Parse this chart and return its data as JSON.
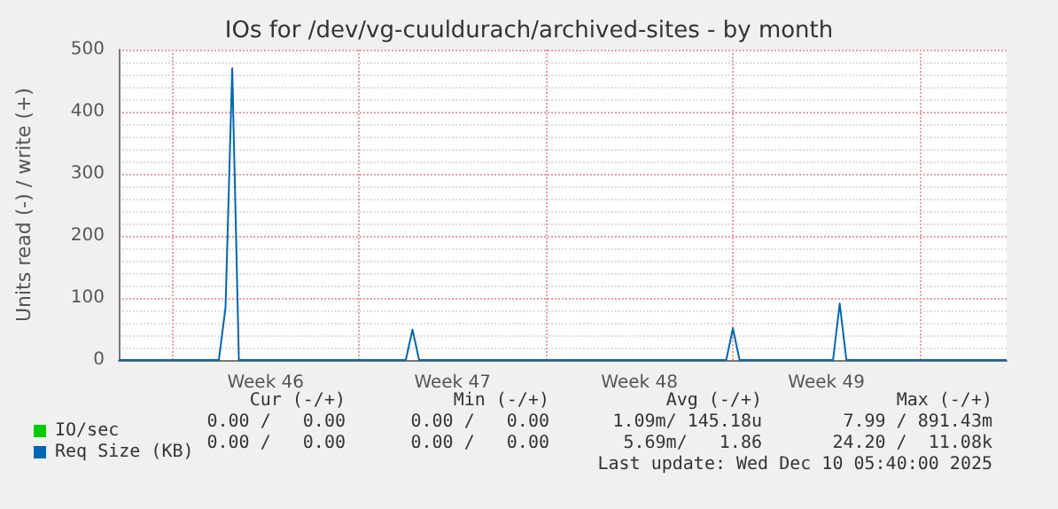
{
  "chart_data": {
    "type": "line",
    "title": "IOs for /dev/vg-cuuldurach/archived-sites - by month",
    "ylabel": "Units read (-) / write (+)",
    "categories": [
      null,
      null,
      null,
      null,
      null,
      null,
      null,
      null,
      null,
      null,
      null,
      null,
      null,
      null,
      null,
      null,
      null,
      null,
      null,
      null,
      null,
      null,
      "Week 46",
      null,
      null,
      null,
      null,
      null,
      null,
      null,
      null,
      null,
      null,
      null,
      null,
      null,
      null,
      null,
      null,
      null,
      null,
      null,
      null,
      null,
      null,
      null,
      null,
      null,
      null,
      null,
      "Week 47",
      null,
      null,
      null,
      null,
      null,
      null,
      null,
      null,
      null,
      null,
      null,
      null,
      null,
      null,
      null,
      null,
      null,
      null,
      null,
      null,
      null,
      null,
      null,
      null,
      null,
      null,
      null,
      "Week 48",
      null,
      null,
      null,
      null,
      null,
      null,
      null,
      null,
      null,
      null,
      null,
      null,
      null,
      null,
      null,
      null,
      null,
      null,
      null,
      null,
      null,
      null,
      null,
      null,
      null,
      null,
      null,
      "Week 49",
      null,
      null,
      null,
      null,
      null,
      null,
      null,
      null,
      null,
      null,
      null,
      null,
      null,
      null,
      null,
      null,
      null,
      null,
      null,
      null,
      null,
      null,
      null,
      null,
      null,
      null,
      null
    ],
    "ylim": [
      0,
      500
    ],
    "yticks": [
      0,
      100,
      200,
      300,
      400,
      500
    ],
    "grid": true,
    "legend": "bottom left",
    "marker": "none",
    "series": [
      {
        "name": "IO/sec",
        "color": "#00cc00",
        "values": [
          null,
          null,
          null,
          null,
          null,
          null,
          null,
          null,
          null,
          null,
          null,
          null,
          null,
          null,
          null,
          null,
          null,
          null,
          null,
          null,
          null,
          null,
          null,
          null,
          null,
          null,
          null,
          null,
          null,
          null,
          null,
          null,
          null,
          null,
          null,
          null,
          null,
          null,
          null,
          null,
          null,
          null,
          null,
          null,
          null,
          null,
          null,
          null,
          null,
          null,
          null,
          null,
          null,
          null,
          null,
          null,
          null,
          null,
          null,
          null,
          null,
          null,
          null,
          null,
          null,
          null,
          null,
          null,
          null,
          null,
          null,
          null,
          null,
          null,
          null,
          null,
          null,
          null,
          null,
          null,
          null,
          null,
          null,
          null,
          null,
          null,
          null,
          null,
          null,
          null,
          null,
          null,
          null,
          null,
          null,
          null,
          null,
          null,
          null,
          null,
          null,
          null,
          null,
          null,
          null,
          null,
          null,
          null,
          null,
          null,
          null,
          null,
          null,
          null,
          null,
          null,
          null,
          null,
          null,
          null,
          null,
          null,
          null,
          null,
          null,
          null,
          null,
          null,
          null,
          null,
          null,
          null,
          null,
          null
        ]
      },
      {
        "name": "Req Size (KB)",
        "color": "#0066b3",
        "values": [
          0,
          0,
          0,
          0,
          0,
          0,
          0,
          0,
          0,
          0,
          0,
          0,
          0,
          0,
          0,
          0,
          85,
          470,
          0,
          0,
          0,
          0,
          0,
          0,
          0,
          0,
          0,
          0,
          0,
          0,
          0,
          0,
          0,
          0,
          0,
          0,
          0,
          0,
          0,
          0,
          0,
          0,
          0,
          0,
          49,
          0,
          0,
          0,
          0,
          0,
          0,
          0,
          0,
          0,
          0,
          0,
          0,
          0,
          0,
          0,
          0,
          0,
          0,
          0,
          0,
          0,
          0,
          0,
          0,
          0,
          0,
          0,
          0,
          0,
          0,
          0,
          0,
          0,
          0,
          0,
          0,
          0,
          0,
          0,
          0,
          0,
          0,
          0,
          0,
          0,
          0,
          0,
          51,
          0,
          0,
          0,
          0,
          0,
          0,
          0,
          0,
          0,
          0,
          0,
          0,
          0,
          0,
          0,
          91,
          0,
          0,
          0,
          0,
          0,
          0,
          0,
          0,
          0,
          0,
          0,
          0,
          0,
          0,
          0,
          0,
          0,
          0,
          0,
          0,
          0,
          0,
          0,
          0,
          0
        ]
      }
    ],
    "annotations": [
      "Cur (-/+)",
      "Min (-/+)",
      "Avg (-/+)",
      "Max (-/+)",
      "0.00 /   0.00",
      "0.00 /   0.00",
      "1.09m/ 145.18u",
      "7.99 / 891.43m",
      "0.00 /   0.00",
      "0.00 /   0.00",
      "5.69m/   1.86",
      "24.20 /  11.08k",
      "Last update: Wed Dec 10 05:40:00 2025"
    ]
  }
}
